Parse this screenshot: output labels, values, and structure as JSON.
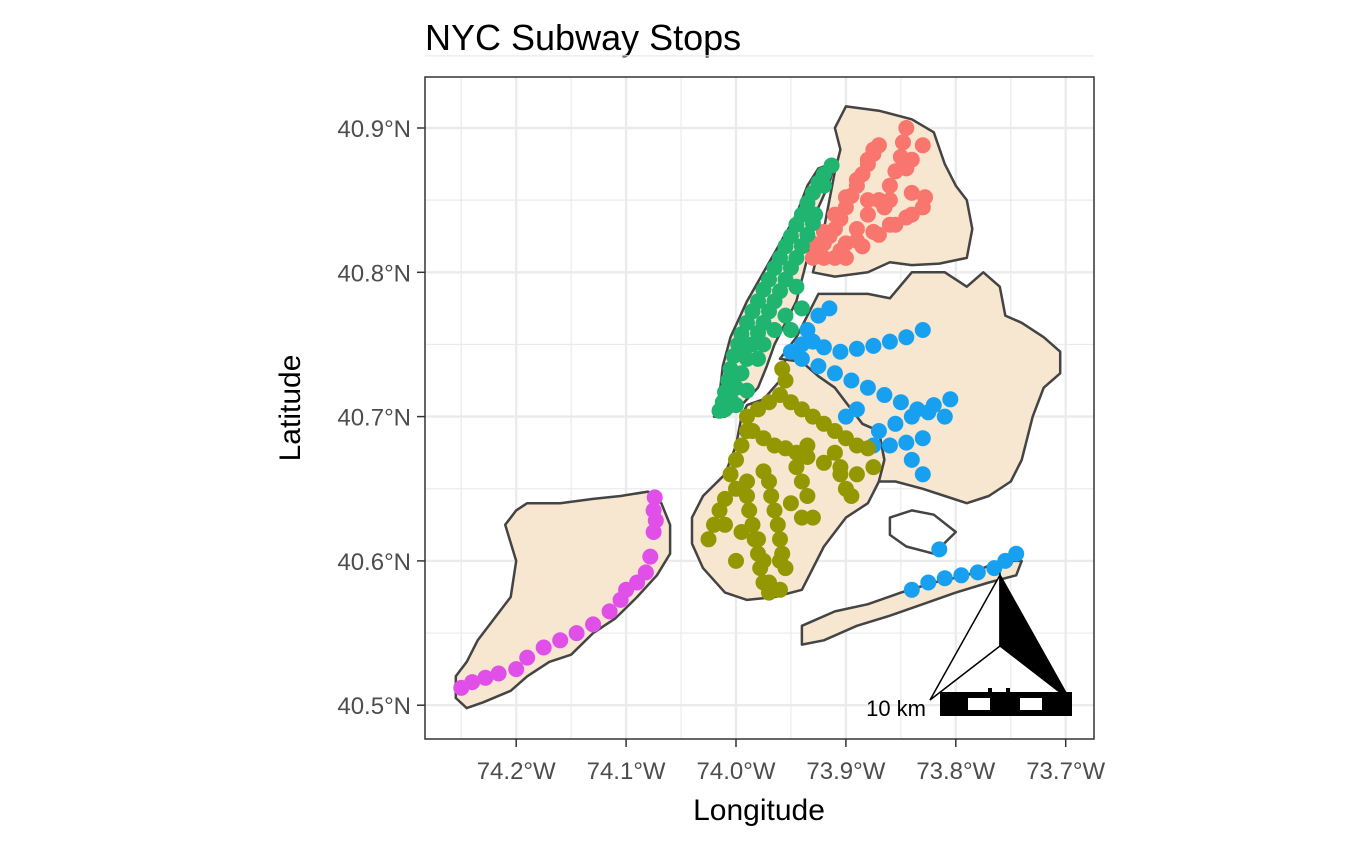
{
  "title": "NYC Subway Stops",
  "xlabel": "Longitude",
  "ylabel": "Latitude",
  "x_ticks": [
    {
      "value": -74.2,
      "label": "74.2°W"
    },
    {
      "value": -74.1,
      "label": "74.1°W"
    },
    {
      "value": -74.0,
      "label": "74.0°W"
    },
    {
      "value": -73.9,
      "label": "73.9°W"
    },
    {
      "value": -73.8,
      "label": "73.8°W"
    },
    {
      "value": -73.7,
      "label": "73.7°W"
    }
  ],
  "y_ticks": [
    {
      "value": 40.9,
      "label": "40.9°N"
    },
    {
      "value": 40.8,
      "label": "40.8°N"
    },
    {
      "value": 40.7,
      "label": "40.7°N"
    },
    {
      "value": 40.6,
      "label": "40.6°N"
    },
    {
      "value": 40.5,
      "label": "40.5°N"
    }
  ],
  "scalebar": {
    "label": "10 km"
  },
  "colors": {
    "land_fill": "#f7e6d0",
    "land_stroke": "#444444",
    "grid": "#ebebeb",
    "panel_border": "#333333"
  },
  "chart_data": {
    "type": "scatter",
    "map": "New York City borough boundaries",
    "xlim": [
      -74.28,
      -73.69
    ],
    "ylim": [
      40.475,
      40.94
    ],
    "grid": true,
    "legend": "none",
    "series": [
      {
        "color": "#f8766d",
        "points": [
          [
            -73.93,
            40.81
          ],
          [
            -73.925,
            40.815
          ],
          [
            -73.92,
            40.82
          ],
          [
            -73.915,
            40.825
          ],
          [
            -73.91,
            40.83
          ],
          [
            -73.905,
            40.837
          ],
          [
            -73.9,
            40.845
          ],
          [
            -73.895,
            40.853
          ],
          [
            -73.89,
            40.86
          ],
          [
            -73.885,
            40.868
          ],
          [
            -73.88,
            40.875
          ],
          [
            -73.875,
            40.882
          ],
          [
            -73.87,
            40.888
          ],
          [
            -73.93,
            40.82
          ],
          [
            -73.92,
            40.828
          ],
          [
            -73.91,
            40.84
          ],
          [
            -73.9,
            40.852
          ],
          [
            -73.89,
            40.864
          ],
          [
            -73.88,
            40.878
          ],
          [
            -73.875,
            40.885
          ],
          [
            -73.91,
            40.81
          ],
          [
            -73.9,
            40.82
          ],
          [
            -73.89,
            40.83
          ],
          [
            -73.88,
            40.84
          ],
          [
            -73.87,
            40.85
          ],
          [
            -73.86,
            40.86
          ],
          [
            -73.855,
            40.87
          ],
          [
            -73.85,
            40.88
          ],
          [
            -73.848,
            40.89
          ],
          [
            -73.845,
            40.9
          ],
          [
            -73.92,
            40.81
          ],
          [
            -73.905,
            40.815
          ],
          [
            -73.89,
            40.822
          ],
          [
            -73.875,
            40.828
          ],
          [
            -73.86,
            40.833
          ],
          [
            -73.845,
            40.838
          ],
          [
            -73.83,
            40.845
          ],
          [
            -73.828,
            40.852
          ],
          [
            -73.9,
            40.81
          ],
          [
            -73.885,
            40.818
          ],
          [
            -73.87,
            40.826
          ],
          [
            -73.855,
            40.833
          ],
          [
            -73.84,
            40.84
          ],
          [
            -73.84,
            40.855
          ],
          [
            -73.845,
            40.872
          ],
          [
            -73.84,
            40.878
          ],
          [
            -73.83,
            40.888
          ],
          [
            -73.86,
            40.85
          ],
          [
            -73.865,
            40.845
          ],
          [
            -73.88,
            40.85
          ]
        ]
      },
      {
        "color": "#1fb571",
        "points": [
          [
            -74.015,
            40.704
          ],
          [
            -74.012,
            40.71
          ],
          [
            -74.01,
            40.717
          ],
          [
            -74.007,
            40.725
          ],
          [
            -74.005,
            40.733
          ],
          [
            -74.002,
            40.742
          ],
          [
            -73.998,
            40.75
          ],
          [
            -73.995,
            40.757
          ],
          [
            -73.99,
            40.765
          ],
          [
            -73.985,
            40.773
          ],
          [
            -73.98,
            40.78
          ],
          [
            -73.975,
            40.788
          ],
          [
            -73.97,
            40.795
          ],
          [
            -73.965,
            40.803
          ],
          [
            -73.96,
            40.81
          ],
          [
            -73.955,
            40.818
          ],
          [
            -73.95,
            40.825
          ],
          [
            -73.945,
            40.833
          ],
          [
            -73.94,
            40.84
          ],
          [
            -73.935,
            40.848
          ],
          [
            -73.93,
            40.855
          ],
          [
            -73.925,
            40.862
          ],
          [
            -73.92,
            40.868
          ],
          [
            -73.913,
            40.874
          ],
          [
            -74.01,
            40.705
          ],
          [
            -74.005,
            40.712
          ],
          [
            -74.0,
            40.72
          ],
          [
            -73.995,
            40.73
          ],
          [
            -73.99,
            40.74
          ],
          [
            -73.985,
            40.75
          ],
          [
            -73.98,
            40.758
          ],
          [
            -73.975,
            40.765
          ],
          [
            -73.97,
            40.773
          ],
          [
            -73.965,
            40.78
          ],
          [
            -73.96,
            40.787
          ],
          [
            -73.955,
            40.795
          ],
          [
            -73.95,
            40.803
          ],
          [
            -73.945,
            40.81
          ],
          [
            -73.94,
            40.818
          ],
          [
            -73.935,
            40.826
          ],
          [
            -73.93,
            40.834
          ],
          [
            -73.928,
            40.84
          ],
          [
            -73.98,
            40.74
          ],
          [
            -73.975,
            40.75
          ],
          [
            -73.965,
            40.76
          ],
          [
            -73.955,
            40.77
          ],
          [
            -73.95,
            40.76
          ],
          [
            -73.94,
            40.775
          ],
          [
            -73.995,
            40.745
          ],
          [
            -74.003,
            40.73
          ],
          [
            -73.99,
            40.718
          ],
          [
            -74.0,
            40.708
          ],
          [
            -73.945,
            40.79
          ],
          [
            -73.92,
            40.86
          ]
        ]
      },
      {
        "color": "#18a0f0",
        "points": [
          [
            -73.95,
            40.745
          ],
          [
            -73.94,
            40.75
          ],
          [
            -73.93,
            40.752
          ],
          [
            -73.92,
            40.748
          ],
          [
            -73.905,
            40.745
          ],
          [
            -73.89,
            40.747
          ],
          [
            -73.875,
            40.749
          ],
          [
            -73.86,
            40.752
          ],
          [
            -73.845,
            40.755
          ],
          [
            -73.83,
            40.76
          ],
          [
            -73.94,
            40.74
          ],
          [
            -73.925,
            40.735
          ],
          [
            -73.91,
            40.73
          ],
          [
            -73.895,
            40.725
          ],
          [
            -73.88,
            40.72
          ],
          [
            -73.865,
            40.715
          ],
          [
            -73.85,
            40.71
          ],
          [
            -73.835,
            40.705
          ],
          [
            -73.82,
            40.708
          ],
          [
            -73.805,
            40.712
          ],
          [
            -73.87,
            40.69
          ],
          [
            -73.855,
            40.695
          ],
          [
            -73.84,
            40.7
          ],
          [
            -73.825,
            40.703
          ],
          [
            -73.81,
            40.7
          ],
          [
            -73.875,
            40.68
          ],
          [
            -73.86,
            40.68
          ],
          [
            -73.845,
            40.682
          ],
          [
            -73.83,
            40.685
          ],
          [
            -73.84,
            40.67
          ],
          [
            -73.83,
            40.66
          ],
          [
            -73.9,
            40.7
          ],
          [
            -73.89,
            40.705
          ],
          [
            -73.935,
            40.76
          ],
          [
            -73.925,
            40.77
          ],
          [
            -73.915,
            40.775
          ],
          [
            -73.84,
            40.58
          ],
          [
            -73.825,
            40.585
          ],
          [
            -73.81,
            40.588
          ],
          [
            -73.795,
            40.59
          ],
          [
            -73.78,
            40.592
          ],
          [
            -73.765,
            40.595
          ],
          [
            -73.755,
            40.6
          ],
          [
            -73.745,
            40.605
          ],
          [
            -73.815,
            40.608
          ]
        ]
      },
      {
        "color": "#939800",
        "points": [
          [
            -74.025,
            40.615
          ],
          [
            -74.02,
            40.625
          ],
          [
            -74.015,
            40.635
          ],
          [
            -74.01,
            40.643
          ],
          [
            -74.0,
            40.65
          ],
          [
            -73.99,
            40.655
          ],
          [
            -73.99,
            40.645
          ],
          [
            -73.988,
            40.635
          ],
          [
            -73.985,
            40.625
          ],
          [
            -73.983,
            40.615
          ],
          [
            -73.98,
            40.605
          ],
          [
            -73.978,
            40.595
          ],
          [
            -73.975,
            40.585
          ],
          [
            -73.97,
            40.578
          ],
          [
            -73.975,
            40.662
          ],
          [
            -73.97,
            40.655
          ],
          [
            -73.968,
            40.645
          ],
          [
            -73.965,
            40.635
          ],
          [
            -73.962,
            40.625
          ],
          [
            -73.96,
            40.615
          ],
          [
            -73.958,
            40.605
          ],
          [
            -73.955,
            40.595
          ],
          [
            -73.96,
            40.58
          ],
          [
            -73.985,
            40.69
          ],
          [
            -73.975,
            40.685
          ],
          [
            -73.965,
            40.68
          ],
          [
            -73.955,
            40.678
          ],
          [
            -73.945,
            40.675
          ],
          [
            -73.935,
            40.672
          ],
          [
            -73.92,
            40.668
          ],
          [
            -73.905,
            40.665
          ],
          [
            -73.89,
            40.66
          ],
          [
            -73.875,
            40.665
          ],
          [
            -73.99,
            40.7
          ],
          [
            -73.98,
            40.705
          ],
          [
            -73.97,
            40.71
          ],
          [
            -73.96,
            40.715
          ],
          [
            -73.955,
            40.725
          ],
          [
            -73.958,
            40.733
          ],
          [
            -73.95,
            40.71
          ],
          [
            -73.94,
            40.705
          ],
          [
            -73.93,
            40.7
          ],
          [
            -73.92,
            40.695
          ],
          [
            -73.91,
            40.69
          ],
          [
            -73.9,
            40.685
          ],
          [
            -73.89,
            40.68
          ],
          [
            -73.88,
            40.678
          ],
          [
            -73.935,
            40.68
          ],
          [
            -73.91,
            40.675
          ],
          [
            -73.905,
            40.66
          ],
          [
            -73.9,
            40.65
          ],
          [
            -73.895,
            40.645
          ],
          [
            -73.945,
            40.665
          ],
          [
            -73.94,
            40.655
          ],
          [
            -73.935,
            40.645
          ],
          [
            -74.005,
            40.66
          ],
          [
            -74.0,
            40.67
          ],
          [
            -73.995,
            40.68
          ],
          [
            -73.99,
            40.69
          ],
          [
            -73.95,
            40.64
          ],
          [
            -73.98,
            40.615
          ],
          [
            -73.975,
            40.6
          ],
          [
            -73.97,
            40.585
          ],
          [
            -73.96,
            40.6
          ],
          [
            -73.94,
            40.63
          ],
          [
            -73.93,
            40.63
          ],
          [
            -74.01,
            40.625
          ],
          [
            -74.0,
            40.6
          ],
          [
            -73.995,
            40.62
          ]
        ]
      },
      {
        "color": "#e050e8",
        "points": [
          [
            -74.25,
            40.512
          ],
          [
            -74.24,
            40.516
          ],
          [
            -74.228,
            40.519
          ],
          [
            -74.216,
            40.522
          ],
          [
            -74.2,
            40.525
          ],
          [
            -74.19,
            40.533
          ],
          [
            -74.175,
            40.54
          ],
          [
            -74.16,
            40.545
          ],
          [
            -74.145,
            40.55
          ],
          [
            -74.13,
            40.556
          ],
          [
            -74.115,
            40.565
          ],
          [
            -74.105,
            40.573
          ],
          [
            -74.1,
            40.58
          ],
          [
            -74.09,
            40.585
          ],
          [
            -74.082,
            40.592
          ],
          [
            -74.078,
            40.603
          ],
          [
            -74.075,
            40.62
          ],
          [
            -74.073,
            40.628
          ],
          [
            -74.075,
            40.635
          ],
          [
            -74.074,
            40.644
          ]
        ]
      }
    ]
  }
}
